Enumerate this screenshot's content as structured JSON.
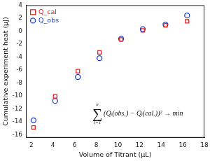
{
  "chart_data": {
    "type": "scatter",
    "x_label": "Volume of Titrant (μL)",
    "y_label": "Cumulative experiment heat (μJ)",
    "series": [
      {
        "name": "Q_cal",
        "color": "#e32222",
        "marker": "square",
        "x": [
          2.2,
          4.2,
          6.3,
          8.3,
          10.3,
          12.3,
          14.4,
          16.4
        ],
        "values": [
          -14.9,
          -10.1,
          -6.2,
          -3.3,
          -1.3,
          0.1,
          0.9,
          1.5
        ]
      },
      {
        "name": "Q_obs",
        "color": "#1a3ccc",
        "marker": "circle",
        "x": [
          2.2,
          4.2,
          6.3,
          8.3,
          10.3,
          12.3,
          14.4,
          16.4
        ],
        "values": [
          -13.8,
          -10.8,
          -7.1,
          -4.2,
          -1.2,
          0.3,
          1.0,
          2.4
        ]
      }
    ],
    "xlim": [
      1.5,
      18
    ],
    "xticks": [
      2,
      4,
      6,
      8,
      10,
      12,
      14,
      16,
      18
    ],
    "ylim": [
      -16.5,
      4
    ],
    "yticks": [
      -16,
      -14,
      -12,
      -10,
      -8,
      -6,
      -4,
      -2,
      0,
      2,
      4
    ],
    "grid": false,
    "legend": "top-left",
    "annotation": {
      "symbol": "∑",
      "sum_upper": "n",
      "sum_lower": "i=1",
      "text": "(Qᵢ(obs.) − Qᵢ(cal.))² → min"
    }
  }
}
